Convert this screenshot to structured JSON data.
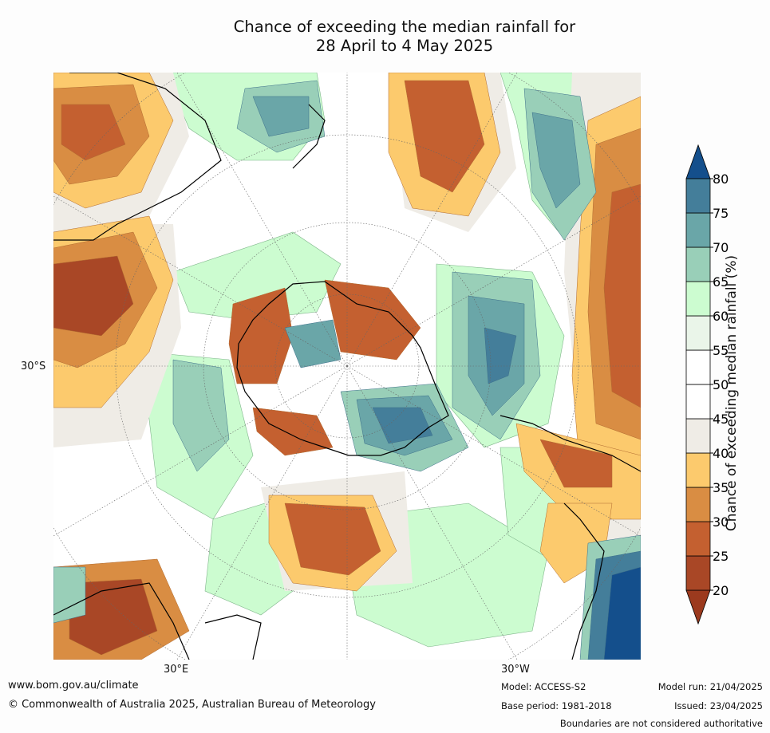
{
  "title_line1": "Chance of exceeding the median rainfall for",
  "title_line2": "28 April to 4 May 2025",
  "map": {
    "lat_label_left": "30°S",
    "lon_label_1": "30°E",
    "lon_label_2": "30°W"
  },
  "colorbar": {
    "title": "Chance of exceeding median rainfall (%)",
    "ticks": [
      "20",
      "25",
      "30",
      "35",
      "40",
      "45",
      "50",
      "55",
      "60",
      "65",
      "70",
      "75",
      "80"
    ],
    "colors": [
      "#9c3a1e",
      "#a94726",
      "#c46030",
      "#d98d43",
      "#fcca6d",
      "#efece6",
      "#ffffff",
      "#ffffff",
      "#eaf5e9",
      "#ccfcd0",
      "#99cfb8",
      "#6aa6a8",
      "#447e9a",
      "#144f8c"
    ]
  },
  "footer": {
    "website": "www.bom.gov.au/climate",
    "copyright": "© Commonwealth of Australia 2025, Australian Bureau of Meteorology",
    "model": "Model: ACCESS-S2",
    "base_period": "Base period: 1981-2018",
    "model_run": "Model run: 21/04/2025",
    "issued": "Issued: 23/04/2025",
    "disclaimer": "Boundaries are not considered authoritative"
  }
}
